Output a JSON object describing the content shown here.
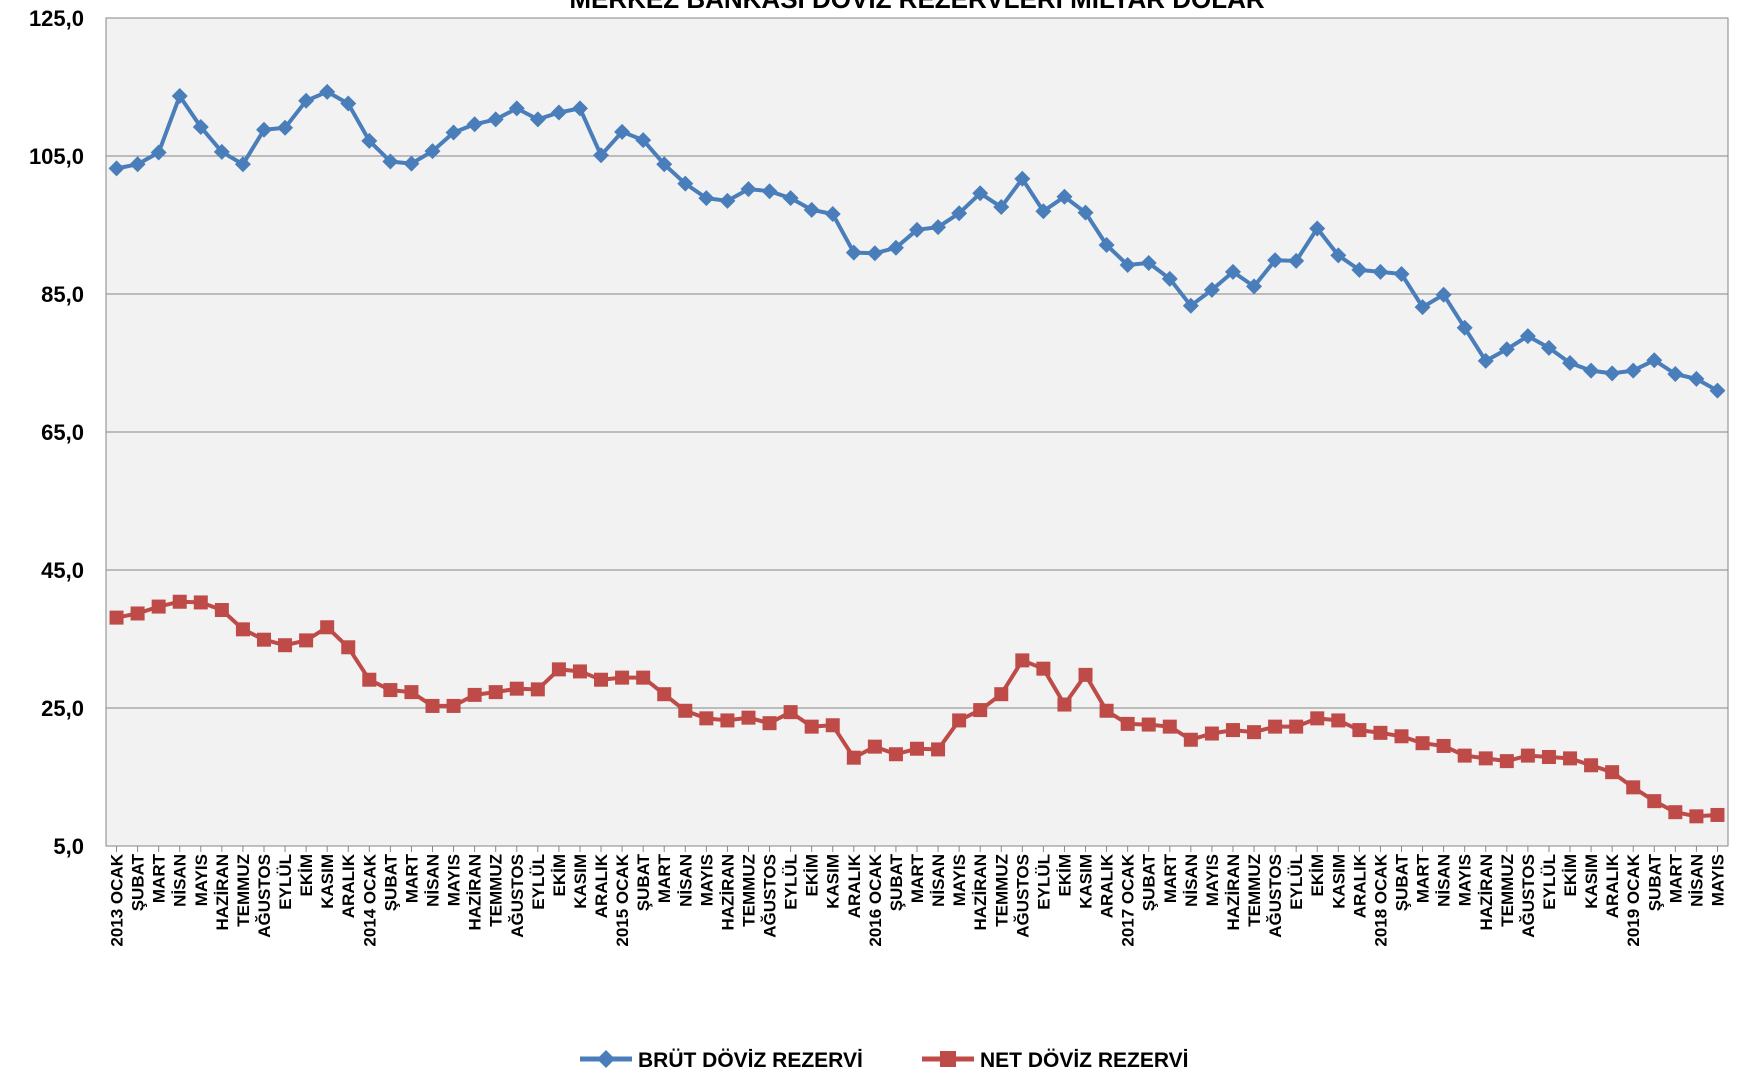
{
  "chart_data": {
    "type": "line",
    "title": "MERKEZ BANKASI DÖVİZ REZERVLERİ MİLYAR DOLAR",
    "xlabel": "",
    "ylabel": "",
    "ylim": [
      5,
      125
    ],
    "yticks": [
      "125,0",
      "105,0",
      "85,0",
      "65,0",
      "45,0",
      "25,0",
      "5,0"
    ],
    "ytick_values": [
      125,
      105,
      85,
      65,
      45,
      25,
      5
    ],
    "grid": true,
    "legend_position": "bottom",
    "categories": [
      "2013 OCAK",
      "ŞUBAT",
      "MART",
      "NİSAN",
      "MAYIS",
      "HAZİRAN",
      "TEMMUZ",
      "AĞUSTOS",
      "EYLÜL",
      "EKİM",
      "KASIM",
      "ARALIK",
      "2014 OCAK",
      "ŞUBAT",
      "MART",
      "NİSAN",
      "MAYIS",
      "HAZİRAN",
      "TEMMUZ",
      "AĞUSTOS",
      "EYLÜL",
      "EKİM",
      "KASIM",
      "ARALIK",
      "2015 OCAK",
      "ŞUBAT",
      "MART",
      "NİSAN",
      "MAYIS",
      "HAZİRAN",
      "TEMMUZ",
      "AĞUSTOS",
      "EYLÜL",
      "EKİM",
      "KASIM",
      "ARALIK",
      "2016 OCAK",
      "ŞUBAT",
      "MART",
      "NİSAN",
      "MAYIS",
      "HAZİRAN",
      "TEMMUZ",
      "AĞUSTOS",
      "EYLÜL",
      "EKİM",
      "KASIM",
      "ARALIK",
      "2017 OCAK",
      "ŞUBAT",
      "MART",
      "NİSAN",
      "MAYIS",
      "HAZİRAN",
      "TEMMUZ",
      "AĞUSTOS",
      "EYLÜL",
      "EKİM",
      "KASIM",
      "ARALIK",
      "2018 OCAK",
      "ŞUBAT",
      "MART",
      "NİSAN",
      "MAYIS",
      "HAZİRAN",
      "TEMMUZ",
      "AĞUSTOS",
      "EYLÜL",
      "EKİM",
      "KASIM",
      "ARALIK",
      "2019 OCAK",
      "ŞUBAT",
      "MART",
      "NİSAN",
      "MAYIS"
    ],
    "series": [
      {
        "name": "BRÜT DÖVİZ REZERVİ",
        "color": "#4A7EBB",
        "marker": "diamond",
        "values": [
          103.2,
          103.8,
          105.5,
          113.7,
          109.2,
          105.6,
          103.8,
          108.8,
          109.1,
          113.0,
          114.3,
          112.6,
          107.2,
          104.2,
          103.9,
          105.7,
          108.4,
          109.6,
          110.3,
          111.9,
          110.3,
          111.3,
          111.9,
          105.1,
          108.5,
          107.3,
          103.8,
          101.0,
          98.9,
          98.5,
          100.2,
          99.9,
          98.9,
          97.2,
          96.6,
          91.0,
          90.9,
          91.7,
          94.3,
          94.7,
          96.7,
          99.6,
          97.6,
          101.7,
          97.0,
          99.1,
          96.8,
          92.1,
          89.2,
          89.5,
          87.2,
          83.3,
          85.6,
          88.2,
          86.1,
          89.9,
          89.8,
          94.5,
          90.6,
          88.5,
          88.2,
          87.9,
          83.1,
          84.9,
          80.1,
          75.3,
          77.0,
          78.9,
          77.2,
          75.0,
          73.9,
          73.5,
          73.9,
          75.4,
          73.4,
          72.7,
          71.0
        ]
      },
      {
        "name": "NET DÖVİZ REZERVİ",
        "color": "#BE4B48",
        "marker": "square",
        "values": [
          38.1,
          38.7,
          39.7,
          40.4,
          40.3,
          39.2,
          36.4,
          34.9,
          34.1,
          34.8,
          36.7,
          33.8,
          29.1,
          27.6,
          27.3,
          25.3,
          25.3,
          26.9,
          27.3,
          27.8,
          27.7,
          30.6,
          30.3,
          29.1,
          29.4,
          29.4,
          27.0,
          24.6,
          23.5,
          23.2,
          23.6,
          22.8,
          24.4,
          22.3,
          22.5,
          17.8,
          19.4,
          18.3,
          19.1,
          19.0,
          23.2,
          24.7,
          27.0,
          31.9,
          30.7,
          25.5,
          29.8,
          24.6,
          22.7,
          22.6,
          22.3,
          20.4,
          21.3,
          21.8,
          21.5,
          22.3,
          22.3,
          23.5,
          23.2,
          21.8,
          21.4,
          20.9,
          19.9,
          19.5,
          18.1,
          17.7,
          17.3,
          18.1,
          17.9,
          17.7,
          16.7,
          15.7,
          13.5,
          11.5,
          9.9,
          9.3,
          9.5
        ]
      }
    ]
  }
}
